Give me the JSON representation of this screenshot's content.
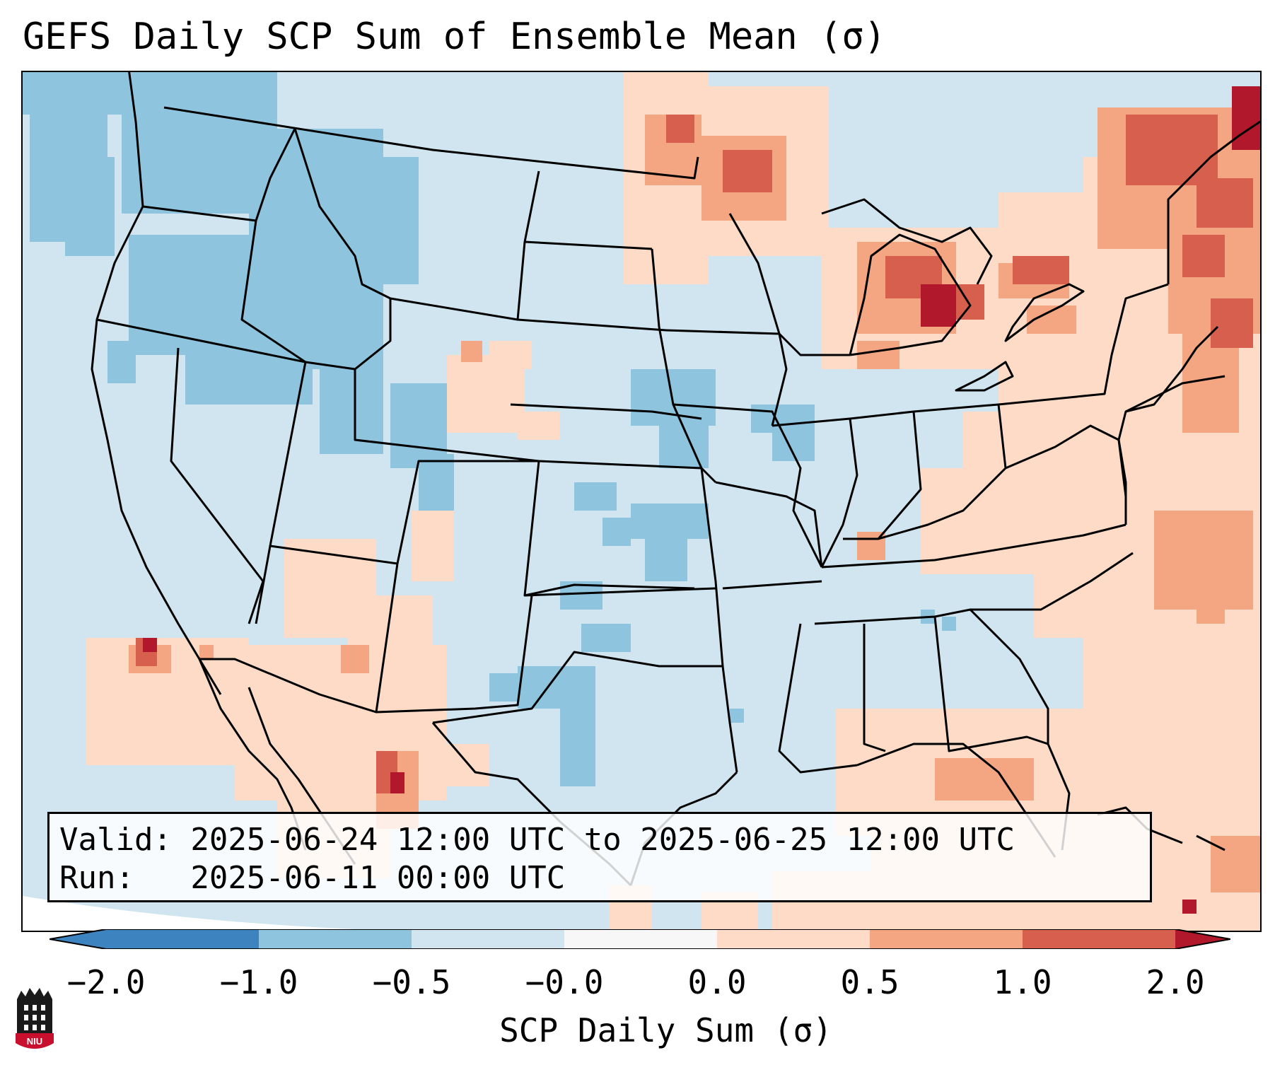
{
  "title": "GEFS Daily SCP Sum of Ensemble Mean (σ)",
  "info": {
    "valid_line": "Valid: 2025-06-24 12:00 UTC to 2025-06-25 12:00 UTC",
    "run_line": "Run:   2025-06-11 00:00 UTC"
  },
  "colorbar": {
    "label": "SCP Daily Sum (σ)",
    "ticks": [
      "−2.0",
      "−1.0",
      "−0.5",
      "−0.0",
      "0.0",
      "0.5",
      "1.0",
      "2.0"
    ],
    "colors": [
      "#3d83bf",
      "#8ec4de",
      "#d1e5f0",
      "#f7f7f7",
      "#fddbc7",
      "#f4a582",
      "#d6604d",
      "#b2182b"
    ]
  },
  "map_colors": {
    "background": "#d1e5f0",
    "light_blue": "#8ec4de",
    "light_red": "#fddbc7",
    "mid_red": "#f4a582",
    "red": "#d6604d",
    "dark_red": "#b2182b"
  },
  "logo_text": "NIU"
}
